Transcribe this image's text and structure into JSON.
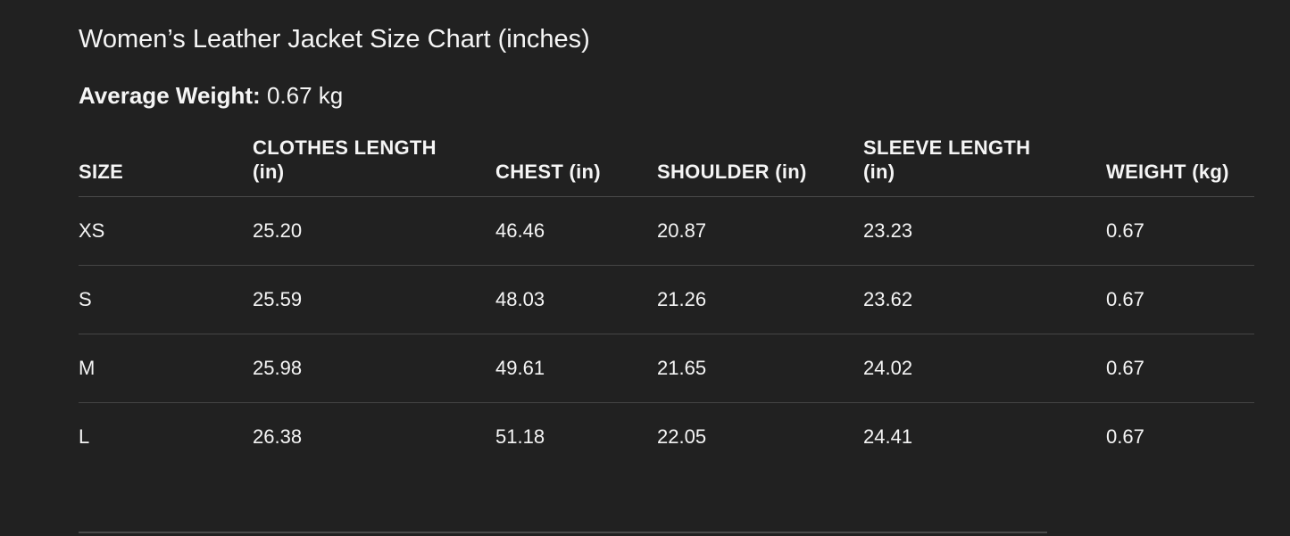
{
  "title": "Women’s Leather Jacket Size Chart (inches)",
  "average_weight": {
    "label": "Average Weight:",
    "value": "0.67 kg"
  },
  "table": {
    "headers": [
      [
        "SIZE",
        ""
      ],
      [
        "CLOTHES LENGTH",
        "(in)"
      ],
      [
        "CHEST (in)",
        ""
      ],
      [
        "SHOULDER (in)",
        ""
      ],
      [
        "SLEEVE LENGTH",
        "(in)"
      ],
      [
        "WEIGHT (kg)",
        ""
      ]
    ],
    "rows": [
      [
        "XS",
        "25.20",
        "46.46",
        "20.87",
        "23.23",
        "0.67"
      ],
      [
        "S",
        "25.59",
        "48.03",
        "21.26",
        "23.62",
        "0.67"
      ],
      [
        "M",
        "25.98",
        "49.61",
        "21.65",
        "24.02",
        "0.67"
      ],
      [
        "L",
        "26.38",
        "51.18",
        "22.05",
        "24.41",
        "0.67"
      ]
    ]
  }
}
